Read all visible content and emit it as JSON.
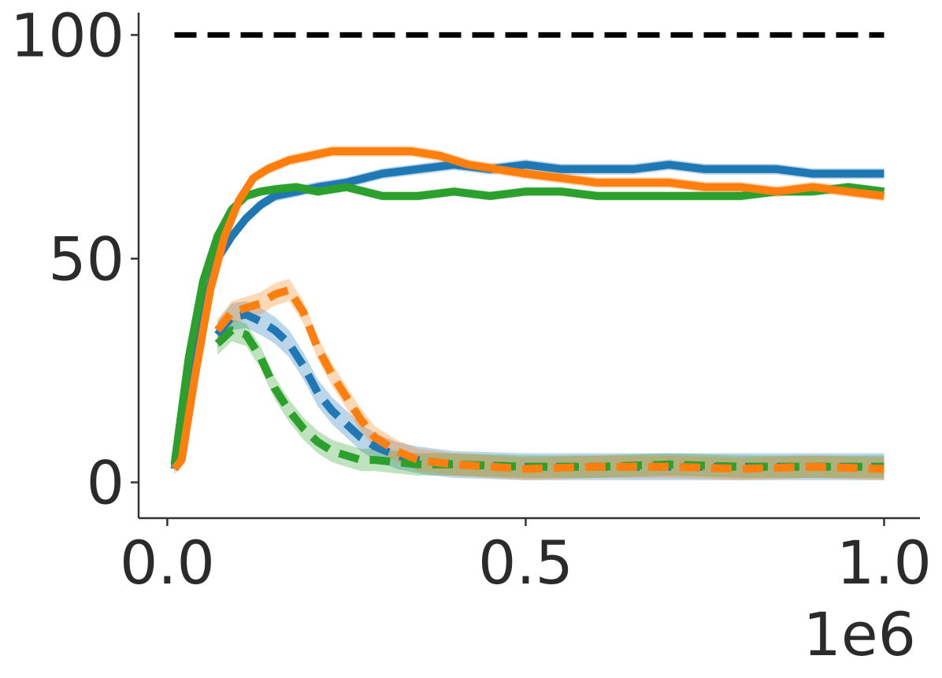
{
  "chart_data": {
    "type": "line",
    "title": "",
    "xlabel": "",
    "ylabel": "",
    "x_offset_text": "1e6",
    "xlim": [
      -0.04,
      1.05
    ],
    "ylim": [
      -8,
      105
    ],
    "x_ticks": [
      0.0,
      0.5,
      1.0
    ],
    "x_tick_labels": [
      "0.0",
      "0.5",
      "1.0"
    ],
    "y_ticks": [
      0,
      50,
      100
    ],
    "y_tick_labels": [
      "0",
      "50",
      "100"
    ],
    "grid": false,
    "legend": "none",
    "reference_line": {
      "y": 100,
      "x_range": [
        0.01,
        1.0
      ],
      "color": "#000000",
      "style": "dashed"
    },
    "series": [
      {
        "color": "#1f77b4",
        "style": "solid",
        "x": [
          0.01,
          0.03,
          0.05,
          0.07,
          0.09,
          0.11,
          0.13,
          0.15,
          0.18,
          0.21,
          0.25,
          0.3,
          0.35,
          0.4,
          0.45,
          0.5,
          0.55,
          0.6,
          0.65,
          0.7,
          0.75,
          0.8,
          0.85,
          0.9,
          0.95,
          1.0
        ],
        "y": [
          3,
          20,
          38,
          50,
          55,
          59,
          62,
          64,
          65,
          66,
          67,
          69,
          70,
          71,
          70,
          71,
          70,
          70,
          70,
          71,
          70,
          70,
          70,
          69,
          69,
          69
        ],
        "band": 1.2
      },
      {
        "color": "#2ca02c",
        "style": "solid",
        "x": [
          0.01,
          0.03,
          0.05,
          0.07,
          0.09,
          0.11,
          0.13,
          0.15,
          0.18,
          0.21,
          0.25,
          0.3,
          0.35,
          0.4,
          0.45,
          0.5,
          0.55,
          0.6,
          0.65,
          0.7,
          0.75,
          0.8,
          0.85,
          0.9,
          0.95,
          1.0
        ],
        "y": [
          4,
          28,
          45,
          55,
          61,
          64,
          65,
          65.5,
          66,
          65,
          66,
          64,
          64,
          65,
          64,
          65,
          65,
          64,
          64,
          64,
          64,
          64,
          65,
          65,
          66,
          65
        ],
        "band": 1.0
      },
      {
        "color": "#ff7f0e",
        "style": "solid",
        "x": [
          0.01,
          0.02,
          0.04,
          0.06,
          0.08,
          0.1,
          0.12,
          0.14,
          0.17,
          0.2,
          0.23,
          0.26,
          0.3,
          0.34,
          0.38,
          0.42,
          0.46,
          0.5,
          0.55,
          0.6,
          0.65,
          0.7,
          0.75,
          0.8,
          0.85,
          0.9,
          0.95,
          1.0
        ],
        "y": [
          3,
          5,
          25,
          43,
          55,
          63,
          68,
          70,
          72,
          73,
          74,
          74,
          74,
          74,
          73,
          71,
          70,
          69,
          68,
          67,
          67,
          67,
          66,
          66,
          65,
          66,
          65,
          64
        ],
        "band": 1.2
      },
      {
        "color": "#1f77b4",
        "style": "dashed",
        "x": [
          0.07,
          0.09,
          0.11,
          0.13,
          0.15,
          0.17,
          0.19,
          0.21,
          0.23,
          0.25,
          0.27,
          0.29,
          0.32,
          0.35,
          0.4,
          0.5,
          0.6,
          0.7,
          0.8,
          0.9,
          1.0
        ],
        "y": [
          33,
          37,
          37.5,
          36,
          34,
          31,
          26,
          20,
          16,
          13,
          10,
          8,
          6,
          5,
          4,
          3.5,
          3.5,
          3.5,
          3.5,
          3.5,
          3.5
        ],
        "band": 3
      },
      {
        "color": "#2ca02c",
        "style": "dashed",
        "x": [
          0.07,
          0.09,
          0.11,
          0.13,
          0.15,
          0.17,
          0.19,
          0.21,
          0.23,
          0.25,
          0.27,
          0.29,
          0.32,
          0.35,
          0.4,
          0.5,
          0.6,
          0.7,
          0.8,
          0.9,
          1.0
        ],
        "y": [
          31,
          34,
          33,
          28,
          21,
          16,
          12,
          9,
          7,
          6,
          5,
          5,
          4.5,
          4,
          4,
          3.5,
          3.5,
          4,
          3.5,
          3.5,
          3.5
        ],
        "band": 2.5
      },
      {
        "color": "#ff7f0e",
        "style": "dashed",
        "x": [
          0.07,
          0.09,
          0.11,
          0.13,
          0.15,
          0.17,
          0.19,
          0.21,
          0.23,
          0.25,
          0.27,
          0.29,
          0.32,
          0.35,
          0.4,
          0.5,
          0.6,
          0.7,
          0.8,
          0.9,
          1.0
        ],
        "y": [
          34,
          38,
          39,
          40,
          42,
          43,
          38,
          30,
          24,
          19,
          14,
          10,
          7,
          5,
          4,
          3,
          3.5,
          3.5,
          3,
          3.5,
          3
        ],
        "band": 2.5
      }
    ]
  }
}
